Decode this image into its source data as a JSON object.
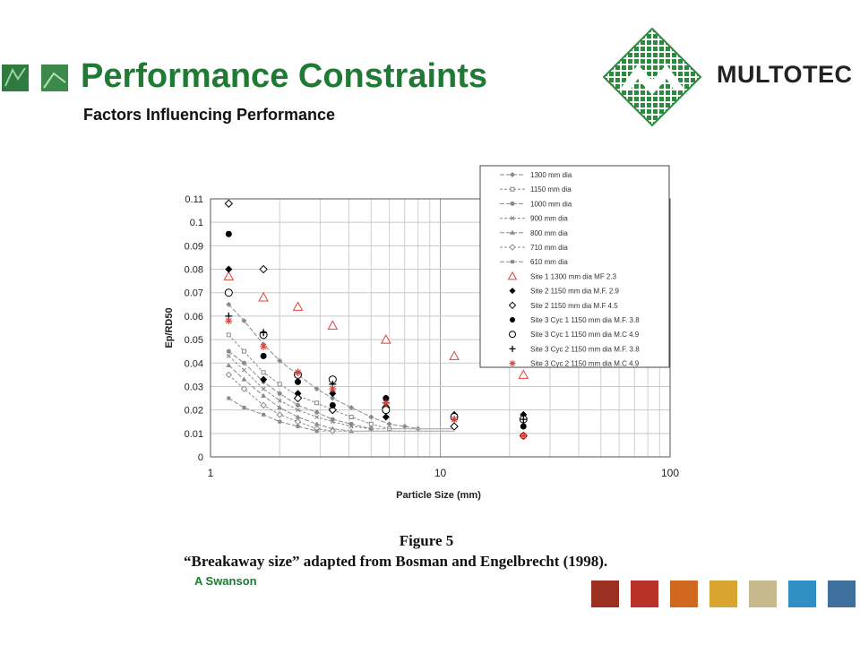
{
  "header": {
    "title": "Performance Constraints",
    "subtitle": "Factors Influencing Performance",
    "left_thumbnails": [
      "#2f7a3e",
      "#3c8a4a"
    ]
  },
  "logo": {
    "brand_text": "MULTOTEC",
    "mark_color": "#2b8a3e"
  },
  "figure": {
    "title": "Figure 5",
    "caption": "“Breakaway size” adapted from Bosman and Engelbrecht (1998)."
  },
  "footer": {
    "author": "A Swanson",
    "color_strip": [
      "#9b2f22",
      "#b8322a",
      "#d0681f",
      "#d8a630",
      "#c7b98e",
      "#2f8fc4",
      "#3f6f9c"
    ]
  },
  "chart_data": {
    "type": "scatter",
    "x_scale": "log",
    "xlim": [
      1,
      100
    ],
    "ylim": [
      0,
      0.11
    ],
    "xlabel": "Particle Size (mm)",
    "ylabel": "Ep/RD50",
    "xticks": [
      "1",
      "10",
      "100"
    ],
    "yticks": [
      "0",
      "0.01",
      "0.02",
      "0.03",
      "0.04",
      "0.05",
      "0.06",
      "0.07",
      "0.08",
      "0.09",
      "0.1",
      "0.11"
    ],
    "grid": true,
    "legend_position": "top-right",
    "series": [
      {
        "name": "1300 mm dia",
        "marker": "diamond",
        "color": "#8a8a8a",
        "line": true,
        "x": [
          1.2,
          1.4,
          1.7,
          2,
          2.4,
          2.9,
          3.4,
          4.1,
          5,
          6,
          7,
          8
        ],
        "y": [
          0.065,
          0.058,
          0.048,
          0.041,
          0.035,
          0.029,
          0.025,
          0.021,
          0.017,
          0.014,
          0.013,
          0.012
        ]
      },
      {
        "name": "1150 mm dia",
        "marker": "square-open",
        "color": "#8a8a8a",
        "line": true,
        "x": [
          1.2,
          1.4,
          1.7,
          2,
          2.4,
          2.9,
          3.4,
          4.1,
          5,
          6
        ],
        "y": [
          0.052,
          0.045,
          0.036,
          0.031,
          0.026,
          0.023,
          0.02,
          0.017,
          0.014,
          0.012
        ]
      },
      {
        "name": "1000 mm dia",
        "marker": "circle",
        "color": "#8a8a8a",
        "line": true,
        "x": [
          1.2,
          1.4,
          1.7,
          2,
          2.4,
          2.9,
          3.4,
          4.1,
          5
        ],
        "y": [
          0.045,
          0.04,
          0.032,
          0.027,
          0.022,
          0.019,
          0.016,
          0.014,
          0.012
        ]
      },
      {
        "name": "900 mm dia",
        "marker": "x",
        "color": "#8a8a8a",
        "line": true,
        "x": [
          1.2,
          1.4,
          1.7,
          2,
          2.4,
          2.9,
          3.4,
          4.1,
          5
        ],
        "y": [
          0.043,
          0.037,
          0.029,
          0.024,
          0.02,
          0.017,
          0.015,
          0.013,
          0.012
        ]
      },
      {
        "name": "800 mm dia",
        "marker": "triangle",
        "color": "#8a8a8a",
        "line": true,
        "x": [
          1.2,
          1.4,
          1.7,
          2,
          2.4,
          2.9,
          3.4,
          4.1
        ],
        "y": [
          0.039,
          0.033,
          0.026,
          0.021,
          0.017,
          0.014,
          0.012,
          0.011
        ]
      },
      {
        "name": "710 mm dia",
        "marker": "diamond-open",
        "color": "#8a8a8a",
        "line": true,
        "x": [
          1.2,
          1.4,
          1.7,
          2,
          2.4,
          2.9,
          3.4
        ],
        "y": [
          0.035,
          0.029,
          0.022,
          0.018,
          0.015,
          0.012,
          0.011
        ]
      },
      {
        "name": "610 mm dia",
        "marker": "square",
        "color": "#8a8a8a",
        "line": true,
        "x": [
          1.2,
          1.4,
          1.7,
          2,
          2.4,
          2.9
        ],
        "y": [
          0.025,
          0.021,
          0.018,
          0.015,
          0.013,
          0.011
        ]
      },
      {
        "name": "Site 1 1300 mm dia MF 2.3",
        "marker": "triangle-open",
        "color": "#e0403a",
        "line": false,
        "x": [
          1.2,
          1.7,
          2.4,
          3.4,
          5.8,
          11.5,
          23
        ],
        "y": [
          0.077,
          0.068,
          0.064,
          0.056,
          0.05,
          0.043,
          0.035
        ]
      },
      {
        "name": "Site 2 1150 mm dia M.F. 2.9",
        "marker": "diamond",
        "color": "#000000",
        "line": false,
        "x": [
          1.2,
          1.7,
          2.4,
          3.4,
          5.8,
          11.5,
          23
        ],
        "y": [
          0.08,
          0.033,
          0.027,
          0.027,
          0.017,
          0.018,
          0.018
        ]
      },
      {
        "name": "Site 2 1150 mm dia M.F 4.5",
        "marker": "diamond-open",
        "color": "#000000",
        "line": false,
        "x": [
          1.2,
          1.7,
          2.4,
          3.4,
          5.8,
          11.5,
          23
        ],
        "y": [
          0.108,
          0.08,
          0.025,
          0.02,
          0.021,
          0.013,
          0.009
        ]
      },
      {
        "name": "Site 3 Cyc 1 1150 mm dia M.F. 3.8",
        "marker": "circle",
        "color": "#000000",
        "line": false,
        "x": [
          1.2,
          1.7,
          2.4,
          3.4,
          5.8,
          11.5,
          23
        ],
        "y": [
          0.095,
          0.043,
          0.032,
          0.022,
          0.025,
          0.017,
          0.013
        ]
      },
      {
        "name": "Site 3 Cyc 1 1150 mm dia M.C 4.9",
        "marker": "circle-open",
        "color": "#000000",
        "line": false,
        "x": [
          1.2,
          1.7,
          2.4,
          3.4,
          5.8,
          11.5,
          23
        ],
        "y": [
          0.07,
          0.052,
          0.035,
          0.033,
          0.02,
          0.017,
          0.016
        ]
      },
      {
        "name": "Site 3 Cyc 2 1150 mm dia M.F. 3.8",
        "marker": "plus",
        "color": "#000000",
        "line": false,
        "x": [
          1.2,
          1.7,
          2.4,
          3.4,
          5.8,
          11.5,
          23
        ],
        "y": [
          0.06,
          0.053,
          0.036,
          0.031,
          0.023,
          0.016,
          0.016
        ]
      },
      {
        "name": "Site 3 Cyc 2 1150 mm dia M.C 4.9",
        "marker": "asterisk",
        "color": "#e0403a",
        "line": false,
        "x": [
          1.2,
          1.7,
          2.4,
          3.4,
          5.8,
          11.5,
          23
        ],
        "y": [
          0.058,
          0.047,
          0.036,
          0.029,
          0.023,
          0.016,
          0.009
        ]
      }
    ]
  }
}
